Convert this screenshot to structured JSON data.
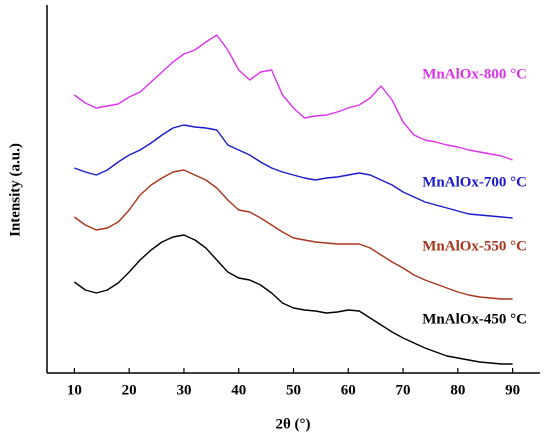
{
  "chart_data": {
    "type": "line",
    "xlabel": "2θ (°)",
    "ylabel": "Intensity (a.u.)",
    "x": [
      10,
      12,
      14,
      16,
      18,
      20,
      22,
      24,
      26,
      28,
      30,
      32,
      34,
      36,
      38,
      40,
      42,
      44,
      46,
      48,
      50,
      52,
      54,
      56,
      58,
      60,
      62,
      64,
      66,
      68,
      70,
      72,
      74,
      76,
      78,
      80,
      82,
      84,
      86,
      88,
      90
    ],
    "xlim": [
      5,
      95
    ],
    "xticks": [
      10,
      20,
      30,
      40,
      50,
      60,
      70,
      80,
      90
    ],
    "ylim": [
      0,
      368
    ],
    "series": [
      {
        "name": "MnAlOx-800 °C",
        "color": "#dd33ee",
        "values": [
          278,
          270,
          265,
          267,
          269,
          276,
          281,
          291,
          301,
          311,
          319,
          323,
          331,
          338,
          323,
          303,
          293,
          301,
          303,
          278,
          265,
          255,
          257,
          258,
          261,
          265,
          268,
          275,
          287,
          273,
          251,
          238,
          233,
          231,
          228,
          226,
          223,
          221,
          219,
          217,
          213
        ]
      },
      {
        "name": "MnAlOx-700 °C",
        "color": "#1a1acc",
        "values": [
          205,
          201,
          198,
          203,
          211,
          218,
          223,
          230,
          238,
          245,
          248,
          246,
          245,
          243,
          228,
          223,
          218,
          211,
          205,
          201,
          198,
          195,
          193,
          195,
          196,
          198,
          200,
          198,
          193,
          188,
          181,
          176,
          171,
          168,
          165,
          162,
          159,
          158,
          157,
          156,
          155
        ]
      },
      {
        "name": "MnAlOx-550 °C",
        "color": "#a8361c",
        "values": [
          156,
          148,
          143,
          145,
          151,
          163,
          178,
          188,
          195,
          201,
          203,
          198,
          193,
          185,
          173,
          163,
          161,
          155,
          148,
          141,
          135,
          133,
          131,
          130,
          129,
          129,
          129,
          125,
          118,
          111,
          105,
          98,
          93,
          89,
          85,
          81,
          78,
          76,
          75,
          74,
          74
        ]
      },
      {
        "name": "MnAlOx-450 °C",
        "color": "#000000",
        "values": [
          91,
          83,
          80,
          83,
          90,
          101,
          113,
          123,
          131,
          136,
          138,
          133,
          125,
          113,
          101,
          95,
          93,
          88,
          80,
          70,
          65,
          63,
          62,
          60,
          61,
          63,
          62,
          55,
          48,
          41,
          35,
          30,
          25,
          21,
          17,
          15,
          13,
          11,
          10,
          9,
          9
        ]
      }
    ]
  }
}
